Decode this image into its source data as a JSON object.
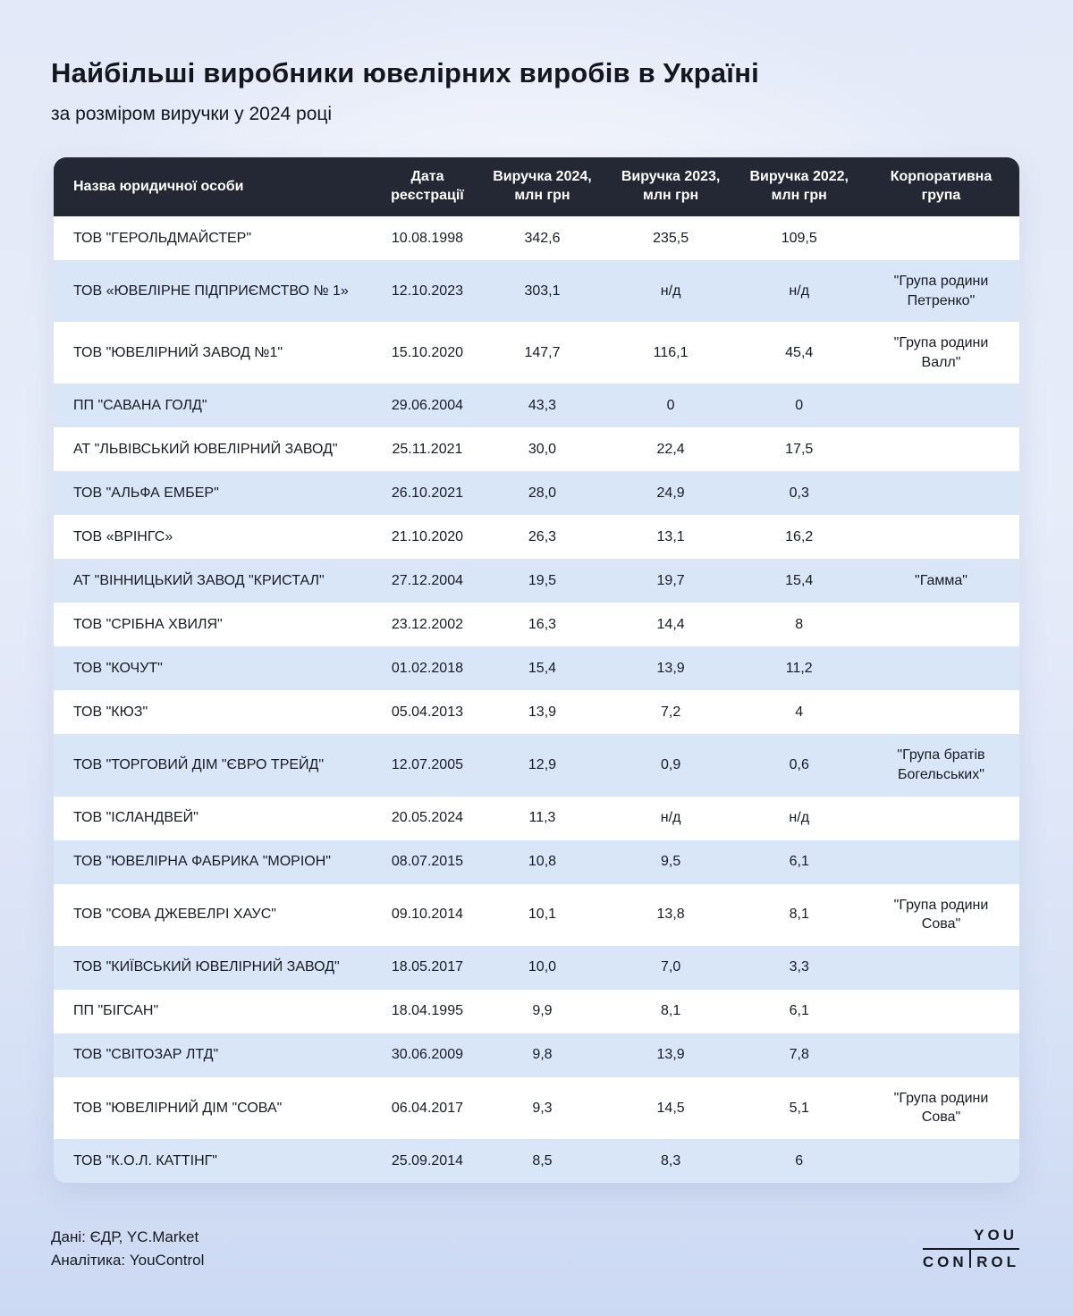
{
  "page": {
    "title": "Найбільші виробники ювелірних виробів в Україні",
    "subtitle": "за розміром виручки у 2024 році"
  },
  "footer": {
    "source_line1": "Дані: ЄДР, YC.Market",
    "source_line2": "Аналітика: YouControl",
    "logo_you": "YOU",
    "logo_con": "CON",
    "logo_rol": "ROL"
  },
  "colors": {
    "header_bg": "#232834",
    "alt_row_bg": "#d9e6f8",
    "text": "#171b22",
    "page_bg_top": "#e3e9f8",
    "page_bg_bottom": "#ccd9f3"
  },
  "chart_data": {
    "type": "table",
    "title": "Найбільші виробники ювелірних виробів в Україні",
    "subtitle": "за розміром виручки у 2024 році",
    "columns": [
      "Назва юридичної особи",
      "Дата реєстрації",
      "Виручка 2024, млн грн",
      "Виручка 2023, млн грн",
      "Виручка 2022, млн грн",
      "Корпоративна група"
    ],
    "rows": [
      {
        "name": "ТОВ \"ГЕРОЛЬДМАЙСТЕР\"",
        "registered": "10.08.1998",
        "revenue_2024": "342,6",
        "revenue_2023": "235,5",
        "revenue_2022": "109,5",
        "group": ""
      },
      {
        "name": "ТОВ «ЮВЕЛІРНЕ ПІДПРИЄМСТВО № 1»",
        "registered": "12.10.2023",
        "revenue_2024": "303,1",
        "revenue_2023": "н/д",
        "revenue_2022": "н/д",
        "group": "\"Група родини Петренко\""
      },
      {
        "name": "ТОВ \"ЮВЕЛІРНИЙ ЗАВОД №1\"",
        "registered": "15.10.2020",
        "revenue_2024": "147,7",
        "revenue_2023": "116,1",
        "revenue_2022": "45,4",
        "group": "\"Група родини Валл\""
      },
      {
        "name": "ПП \"САВАНА ГОЛД\"",
        "registered": "29.06.2004",
        "revenue_2024": "43,3",
        "revenue_2023": "0",
        "revenue_2022": "0",
        "group": ""
      },
      {
        "name": "АТ \"ЛЬВІВСЬКИЙ ЮВЕЛІРНИЙ ЗАВОД\"",
        "registered": "25.11.2021",
        "revenue_2024": "30,0",
        "revenue_2023": "22,4",
        "revenue_2022": "17,5",
        "group": ""
      },
      {
        "name": "ТОВ \"АЛЬФА ЕМБЕР\"",
        "registered": "26.10.2021",
        "revenue_2024": "28,0",
        "revenue_2023": "24,9",
        "revenue_2022": "0,3",
        "group": ""
      },
      {
        "name": "ТОВ «ВРІНГС»",
        "registered": "21.10.2020",
        "revenue_2024": "26,3",
        "revenue_2023": "13,1",
        "revenue_2022": "16,2",
        "group": ""
      },
      {
        "name": "АТ \"ВІННИЦЬКИЙ ЗАВОД \"КРИСТАЛ\"",
        "registered": "27.12.2004",
        "revenue_2024": "19,5",
        "revenue_2023": "19,7",
        "revenue_2022": "15,4",
        "group": "\"Гамма\""
      },
      {
        "name": "ТОВ \"СРІБНА ХВИЛЯ\"",
        "registered": "23.12.2002",
        "revenue_2024": "16,3",
        "revenue_2023": "14,4",
        "revenue_2022": "8",
        "group": ""
      },
      {
        "name": "ТОВ \"КОЧУТ\"",
        "registered": "01.02.2018",
        "revenue_2024": "15,4",
        "revenue_2023": "13,9",
        "revenue_2022": "11,2",
        "group": ""
      },
      {
        "name": "ТОВ \"КЮЗ\"",
        "registered": "05.04.2013",
        "revenue_2024": "13,9",
        "revenue_2023": "7,2",
        "revenue_2022": "4",
        "group": ""
      },
      {
        "name": "ТОВ \"ТОРГОВИЙ ДІМ \"ЄВРО ТРЕЙД\"",
        "registered": "12.07.2005",
        "revenue_2024": "12,9",
        "revenue_2023": "0,9",
        "revenue_2022": "0,6",
        "group": "\"Група братів Богельських\""
      },
      {
        "name": "ТОВ \"ІСЛАНДВЕЙ\"",
        "registered": "20.05.2024",
        "revenue_2024": "11,3",
        "revenue_2023": "н/д",
        "revenue_2022": "н/д",
        "group": ""
      },
      {
        "name": "ТОВ \"ЮВЕЛІРНА ФАБРИКА \"МОРІОН\"",
        "registered": "08.07.2015",
        "revenue_2024": "10,8",
        "revenue_2023": "9,5",
        "revenue_2022": "6,1",
        "group": ""
      },
      {
        "name": "ТОВ \"СОВА ДЖЕВЕЛРІ ХАУС\"",
        "registered": "09.10.2014",
        "revenue_2024": "10,1",
        "revenue_2023": "13,8",
        "revenue_2022": "8,1",
        "group": "\"Група родини Сова\""
      },
      {
        "name": "ТОВ \"КИЇВСЬКИЙ ЮВЕЛІРНИЙ ЗАВОД\"",
        "registered": "18.05.2017",
        "revenue_2024": "10,0",
        "revenue_2023": "7,0",
        "revenue_2022": "3,3",
        "group": ""
      },
      {
        "name": "ПП \"БІГСАН\"",
        "registered": "18.04.1995",
        "revenue_2024": "9,9",
        "revenue_2023": "8,1",
        "revenue_2022": "6,1",
        "group": ""
      },
      {
        "name": "ТОВ \"СВІТОЗАР ЛТД\"",
        "registered": "30.06.2009",
        "revenue_2024": "9,8",
        "revenue_2023": "13,9",
        "revenue_2022": "7,8",
        "group": ""
      },
      {
        "name": "ТОВ \"ЮВЕЛІРНИЙ ДІМ \"СОВА\"",
        "registered": "06.04.2017",
        "revenue_2024": "9,3",
        "revenue_2023": "14,5",
        "revenue_2022": "5,1",
        "group": "\"Група родини Сова\""
      },
      {
        "name": "ТОВ \"К.О.Л. КАТТІНГ\"",
        "registered": "25.09.2014",
        "revenue_2024": "8,5",
        "revenue_2023": "8,3",
        "revenue_2022": "6",
        "group": ""
      }
    ]
  }
}
